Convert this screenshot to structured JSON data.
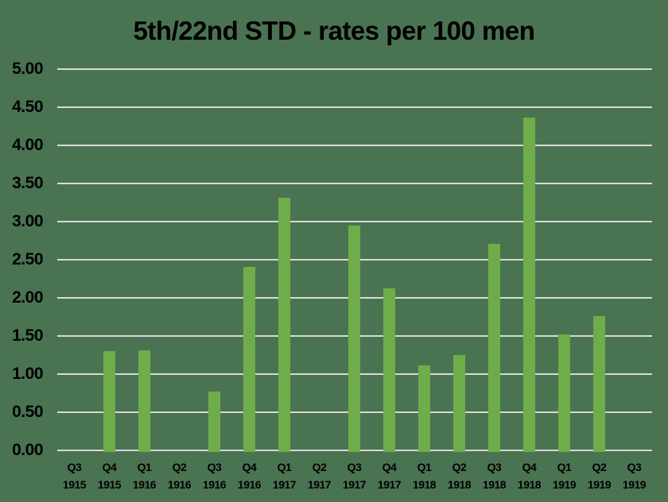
{
  "title": {
    "text": "5th/22nd STD - rates per 100 men"
  },
  "colors": {
    "background": "#4a7352",
    "bar": "#6fad4a",
    "gridline": "#d9d9d9",
    "text": "#000000"
  },
  "chart_data": {
    "type": "bar",
    "title": "5th/22nd STD - rates per 100 men",
    "xlabel": "",
    "ylabel": "",
    "ylim": [
      0,
      5
    ],
    "ytick_step": 0.5,
    "ytick_labels": [
      "0.00",
      "0.50",
      "1.00",
      "1.50",
      "2.00",
      "2.50",
      "3.00",
      "3.50",
      "4.00",
      "4.50",
      "5.00"
    ],
    "grid": true,
    "legend": "none",
    "categories": [
      "Q3 1915",
      "Q4 1915",
      "Q1 1916",
      "Q2 1916",
      "Q3 1916",
      "Q4 1916",
      "Q1 1917",
      "Q2 1917",
      "Q3 1917",
      "Q4 1917",
      "Q1 1918",
      "Q2 1918",
      "Q3 1918",
      "Q4 1918",
      "Q1 1919",
      "Q2 1919",
      "Q3 1919"
    ],
    "category_labels": [
      [
        "Q3",
        "1915"
      ],
      [
        "Q4",
        "1915"
      ],
      [
        "Q1",
        "1916"
      ],
      [
        "Q2",
        "1916"
      ],
      [
        "Q3",
        "1916"
      ],
      [
        "Q4",
        "1916"
      ],
      [
        "Q1",
        "1917"
      ],
      [
        "Q2",
        "1917"
      ],
      [
        "Q3",
        "1917"
      ],
      [
        "Q4",
        "1917"
      ],
      [
        "Q1",
        "1918"
      ],
      [
        "Q2",
        "1918"
      ],
      [
        "Q3",
        "1918"
      ],
      [
        "Q4",
        "1918"
      ],
      [
        "Q1",
        "1919"
      ],
      [
        "Q2",
        "1919"
      ],
      [
        "Q3",
        "1919"
      ]
    ],
    "values": [
      0,
      1.3,
      1.31,
      0,
      0.77,
      2.41,
      3.31,
      0,
      2.95,
      2.12,
      1.11,
      1.25,
      2.71,
      4.36,
      1.52,
      1.76,
      0
    ]
  }
}
